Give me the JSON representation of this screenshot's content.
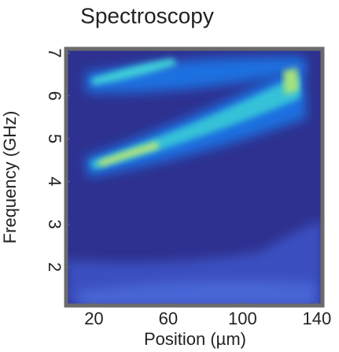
{
  "chart_data": {
    "type": "heatmap",
    "title": "Spectroscopy",
    "x_label": "Position (µm)",
    "y_label": "Frequency (GHz)",
    "xlim": [
      5,
      143
    ],
    "xticks": [
      20,
      60,
      100,
      140
    ],
    "ylim": [
      1.1,
      7.1
    ],
    "yticks": [
      2,
      3,
      4,
      5,
      6,
      7
    ]
  }
}
